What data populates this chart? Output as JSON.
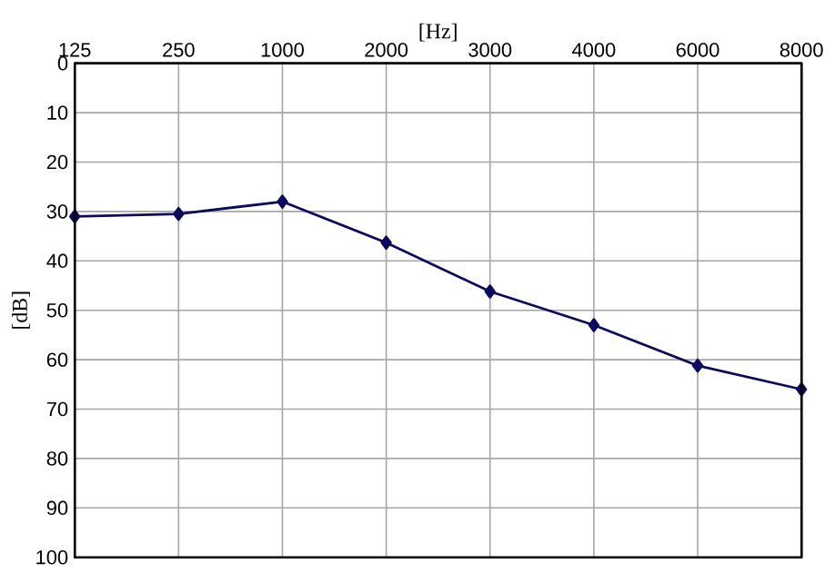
{
  "chart_data": {
    "type": "line",
    "xlabel": "[Hz]",
    "ylabel": "[dB]",
    "categories": [
      "125",
      "250",
      "1000",
      "2000",
      "3000",
      "4000",
      "6000",
      "8000"
    ],
    "values": [
      31,
      30.5,
      28,
      36.3,
      46.2,
      53,
      61.2,
      66
    ],
    "color": "#0a0a5e",
    "marker": "diamond",
    "line_style": "solid",
    "ylim": [
      100,
      0
    ],
    "yticks": [
      0,
      10,
      20,
      30,
      40,
      50,
      60,
      70,
      80,
      90,
      100
    ],
    "grid": true
  }
}
